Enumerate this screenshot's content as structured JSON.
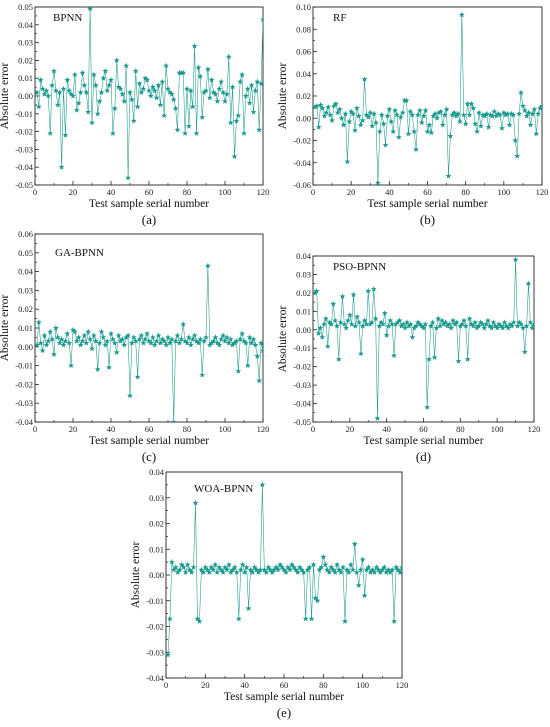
{
  "colors": {
    "series": "#1a9a8e",
    "axis": "#222222"
  },
  "chart_data": [
    {
      "id": "a",
      "type": "scatter",
      "title": "BPNN",
      "caption": "(a)",
      "xlabel": "Test sample serial number",
      "ylabel": "Absolute error",
      "xlim": [
        0,
        120
      ],
      "ylim": [
        -0.05,
        0.05
      ],
      "xticks": [
        0,
        20,
        40,
        60,
        80,
        100,
        120
      ],
      "yticks": [
        -0.05,
        -0.04,
        -0.03,
        -0.02,
        -0.01,
        0.0,
        0.01,
        0.02,
        0.03,
        0.04,
        0.05
      ],
      "x": [
        1,
        2,
        3,
        4,
        5,
        6,
        7,
        8,
        9,
        10,
        11,
        12,
        13,
        14,
        15,
        16,
        17,
        18,
        19,
        20,
        21,
        22,
        23,
        24,
        25,
        26,
        27,
        28,
        29,
        30,
        31,
        32,
        33,
        34,
        35,
        36,
        37,
        38,
        39,
        40,
        41,
        42,
        43,
        44,
        45,
        46,
        47,
        48,
        49,
        50,
        51,
        52,
        53,
        54,
        55,
        56,
        57,
        58,
        59,
        60,
        61,
        62,
        63,
        64,
        65,
        66,
        67,
        68,
        69,
        70,
        71,
        72,
        73,
        74,
        75,
        76,
        77,
        78,
        79,
        80,
        81,
        82,
        83,
        84,
        85,
        86,
        87,
        88,
        89,
        90,
        91,
        92,
        93,
        94,
        95,
        96,
        97,
        98,
        99,
        100,
        101,
        102,
        103,
        104,
        105,
        106,
        107,
        108,
        109,
        110,
        111,
        112,
        113,
        114,
        115,
        116,
        117,
        118,
        119,
        120
      ],
      "y": [
        0.002,
        -0.006,
        0.009,
        0.004,
        0.001,
        0.003,
        0.0,
        -0.021,
        0.006,
        0.014,
        0.003,
        -0.005,
        0.002,
        -0.04,
        0.004,
        -0.022,
        0.009,
        0.003,
        0.001,
        0.0,
        0.012,
        -0.008,
        -0.004,
        0.002,
        0.013,
        0.006,
        0.002,
        -0.009,
        0.049,
        -0.015,
        0.012,
        0.006,
        -0.01,
        -0.003,
        0.002,
        0.01,
        0.014,
        0.003,
        0.006,
        0.009,
        -0.021,
        -0.007,
        0.02,
        0.005,
        0.004,
        0.001,
        -0.003,
        0.017,
        -0.046,
        0.002,
        -0.002,
        -0.014,
        0.014,
        -0.006,
        0.007,
        0.002,
        0.004,
        0.01,
        0.009,
        0.003,
        0.0,
        0.005,
        0.003,
        -0.001,
        0.006,
        -0.005,
        0.008,
        -0.011,
        0.017,
        0.004,
        0.002,
        0.001,
        -0.002,
        -0.007,
        -0.019,
        0.013,
        0.013,
        0.013,
        -0.021,
        0.004,
        -0.017,
        0.003,
        -0.006,
        0.028,
        -0.021,
        0.016,
        0.011,
        -0.012,
        0.002,
        0.003,
        0.015,
        -0.001,
        0.009,
        0.002,
        0.001,
        -0.003,
        0.004,
        0.008,
        0.002,
        -0.003,
        0.001,
        0.022,
        -0.015,
        0.005,
        -0.034,
        -0.014,
        -0.011,
        0.008,
        0.012,
        -0.021,
        0.0,
        0.004,
        -0.004,
        0.006,
        -0.009,
        0.003,
        0.008,
        -0.019,
        0.007,
        0.043
      ]
    },
    {
      "id": "b",
      "type": "scatter",
      "title": "RF",
      "caption": "(b)",
      "xlabel": "Test sample serial number",
      "ylabel": "Absolute error",
      "xlim": [
        0,
        120
      ],
      "ylim": [
        -0.06,
        0.1
      ],
      "xticks": [
        0,
        20,
        40,
        60,
        80,
        100,
        120
      ],
      "yticks": [
        -0.06,
        -0.04,
        -0.02,
        0.0,
        0.02,
        0.04,
        0.06,
        0.08,
        0.1
      ],
      "x": [
        1,
        2,
        3,
        4,
        5,
        6,
        7,
        8,
        9,
        10,
        11,
        12,
        13,
        14,
        15,
        16,
        17,
        18,
        19,
        20,
        21,
        22,
        23,
        24,
        25,
        26,
        27,
        28,
        29,
        30,
        31,
        32,
        33,
        34,
        35,
        36,
        37,
        38,
        39,
        40,
        41,
        42,
        43,
        44,
        45,
        46,
        47,
        48,
        49,
        50,
        51,
        52,
        53,
        54,
        55,
        56,
        57,
        58,
        59,
        60,
        61,
        62,
        63,
        64,
        65,
        66,
        67,
        68,
        69,
        70,
        71,
        72,
        73,
        74,
        75,
        76,
        77,
        78,
        79,
        80,
        81,
        82,
        83,
        84,
        85,
        86,
        87,
        88,
        89,
        90,
        91,
        92,
        93,
        94,
        95,
        96,
        97,
        98,
        99,
        100,
        101,
        102,
        103,
        104,
        105,
        106,
        107,
        108,
        109,
        110,
        111,
        112,
        113,
        114,
        115,
        116,
        117,
        118,
        119,
        120
      ],
      "y": [
        0.01,
        0.011,
        -0.008,
        0.012,
        0.009,
        0.002,
        0.005,
        0.01,
        0.003,
        -0.002,
        0.011,
        0.013,
        0.005,
        0.008,
        0.0,
        -0.006,
        0.004,
        -0.039,
        -0.003,
        0.006,
        0.004,
        -0.011,
        0.009,
        0.002,
        -0.006,
        -0.002,
        0.035,
        0.003,
        0.001,
        0.005,
        -0.007,
        0.004,
        -0.004,
        -0.058,
        -0.012,
        0.003,
        -0.005,
        -0.024,
        0.002,
        0.008,
        -0.003,
        -0.012,
        0.007,
        0.003,
        -0.017,
        0.001,
        0.005,
        0.016,
        0.016,
        -0.014,
        0.006,
        0.003,
        -0.012,
        -0.028,
        0.003,
        0.007,
        -0.004,
        0.002,
        0.007,
        -0.012,
        -0.006,
        -0.013,
        0.002,
        0.004,
        0.0,
        0.005,
        0.006,
        -0.006,
        0.003,
        0.008,
        -0.052,
        -0.016,
        0.003,
        0.005,
        0.002,
        0.004,
        -0.003,
        0.093,
        0.003,
        -0.005,
        0.013,
        0.003,
        0.013,
        0.009,
        -0.005,
        -0.012,
        0.005,
        -0.007,
        0.003,
        0.002,
        0.004,
        -0.008,
        0.003,
        0.002,
        0.006,
        0.002,
        0.004,
        0.003,
        -0.009,
        0.005,
        0.003,
        0.004,
        -0.006,
        0.004,
        0.003,
        -0.02,
        -0.034,
        0.004,
        0.023,
        0.011,
        0.007,
        0.002,
        0.005,
        -0.006,
        0.004,
        0.008,
        -0.014,
        0.004,
        0.009,
        0.011
      ]
    },
    {
      "id": "c",
      "type": "scatter",
      "title": "GA-BPNN",
      "caption": "(c)",
      "xlabel": "Test sample serial number",
      "ylabel": "Absolute error",
      "xlim": [
        0,
        120
      ],
      "ylim": [
        -0.04,
        0.06
      ],
      "xticks": [
        0,
        20,
        40,
        60,
        80,
        100,
        120
      ],
      "yticks": [
        -0.04,
        -0.03,
        -0.02,
        -0.01,
        0.0,
        0.01,
        0.02,
        0.03,
        0.04,
        0.05,
        0.06
      ],
      "x": [
        1,
        2,
        3,
        4,
        5,
        6,
        7,
        8,
        9,
        10,
        11,
        12,
        13,
        14,
        15,
        16,
        17,
        18,
        19,
        20,
        21,
        22,
        23,
        24,
        25,
        26,
        27,
        28,
        29,
        30,
        31,
        32,
        33,
        34,
        35,
        36,
        37,
        38,
        39,
        40,
        41,
        42,
        43,
        44,
        45,
        46,
        47,
        48,
        49,
        50,
        51,
        52,
        53,
        54,
        55,
        56,
        57,
        58,
        59,
        60,
        61,
        62,
        63,
        64,
        65,
        66,
        67,
        68,
        69,
        70,
        71,
        72,
        73,
        74,
        75,
        76,
        77,
        78,
        79,
        80,
        81,
        82,
        83,
        84,
        85,
        86,
        87,
        88,
        89,
        90,
        91,
        92,
        93,
        94,
        95,
        96,
        97,
        98,
        99,
        100,
        101,
        102,
        103,
        104,
        105,
        106,
        107,
        108,
        109,
        110,
        111,
        112,
        113,
        114,
        115,
        116,
        117,
        118,
        119,
        120
      ],
      "y": [
        0.001,
        0.013,
        0.002,
        -0.002,
        0.006,
        0.001,
        0.003,
        0.008,
        0.004,
        -0.004,
        0.01,
        0.005,
        0.002,
        0.004,
        0.001,
        0.003,
        0.007,
        0.002,
        -0.01,
        0.009,
        0.008,
        0.003,
        0.005,
        0.001,
        0.003,
        0.006,
        0.002,
        0.008,
        0.004,
        -0.001,
        0.006,
        0.003,
        -0.012,
        0.002,
        0.008,
        0.005,
        0.001,
        0.003,
        -0.011,
        0.007,
        0.004,
        0.002,
        -0.003,
        0.006,
        0.003,
        0.004,
        0.001,
        0.005,
        0.006,
        -0.026,
        0.002,
        0.005,
        0.003,
        -0.016,
        0.004,
        0.006,
        0.002,
        0.004,
        0.007,
        0.003,
        0.002,
        0.005,
        0.001,
        0.003,
        0.006,
        0.002,
        0.004,
        0.003,
        0.001,
        0.005,
        0.002,
        0.004,
        -0.04,
        0.003,
        0.006,
        0.002,
        0.004,
        0.012,
        0.003,
        0.002,
        0.005,
        0.001,
        0.004,
        0.006,
        0.003,
        0.002,
        0.004,
        -0.015,
        0.003,
        0.005,
        0.043,
        0.001,
        0.002,
        0.003,
        0.005,
        0.002,
        0.001,
        0.004,
        0.006,
        0.003,
        0.005,
        0.002,
        0.004,
        0.001,
        0.002,
        0.003,
        -0.013,
        0.004,
        0.007,
        0.003,
        0.002,
        -0.01,
        0.005,
        0.002,
        0.004,
        0.001,
        -0.005,
        -0.018,
        0.002,
        -0.002
      ]
    },
    {
      "id": "d",
      "type": "scatter",
      "title": "PSO-BPNN",
      "caption": "(d)",
      "xlabel": "Test sample serial number",
      "ylabel": "Absolute error",
      "xlim": [
        0,
        120
      ],
      "ylim": [
        -0.05,
        0.04
      ],
      "xticks": [
        0,
        20,
        40,
        60,
        80,
        100,
        120
      ],
      "yticks": [
        -0.05,
        -0.04,
        -0.03,
        -0.02,
        -0.01,
        0.0,
        0.01,
        0.02,
        0.03,
        0.04
      ],
      "x": [
        1,
        2,
        3,
        4,
        5,
        6,
        7,
        8,
        9,
        10,
        11,
        12,
        13,
        14,
        15,
        16,
        17,
        18,
        19,
        20,
        21,
        22,
        23,
        24,
        25,
        26,
        27,
        28,
        29,
        30,
        31,
        32,
        33,
        34,
        35,
        36,
        37,
        38,
        39,
        40,
        41,
        42,
        43,
        44,
        45,
        46,
        47,
        48,
        49,
        50,
        51,
        52,
        53,
        54,
        55,
        56,
        57,
        58,
        59,
        60,
        61,
        62,
        63,
        64,
        65,
        66,
        67,
        68,
        69,
        70,
        71,
        72,
        73,
        74,
        75,
        76,
        77,
        78,
        79,
        80,
        81,
        82,
        83,
        84,
        85,
        86,
        87,
        88,
        89,
        90,
        91,
        92,
        93,
        94,
        95,
        96,
        97,
        98,
        99,
        100,
        101,
        102,
        103,
        104,
        105,
        106,
        107,
        108,
        109,
        110,
        111,
        112,
        113,
        114,
        115,
        116,
        117,
        118,
        119,
        120
      ],
      "y": [
        0.02,
        0.021,
        -0.002,
        0.001,
        -0.004,
        0.003,
        0.006,
        -0.009,
        0.004,
        0.003,
        0.014,
        0.005,
        0.002,
        -0.016,
        0.004,
        0.018,
        0.003,
        0.001,
        0.005,
        0.008,
        0.003,
        0.019,
        0.002,
        0.007,
        0.004,
        -0.013,
        0.002,
        0.005,
        0.003,
        0.021,
        0.003,
        0.004,
        0.022,
        0.006,
        -0.048,
        0.002,
        0.004,
        0.003,
        0.009,
        -0.003,
        0.002,
        0.005,
        0.003,
        -0.014,
        0.003,
        0.004,
        0.005,
        0.002,
        0.003,
        0.001,
        0.004,
        0.002,
        0.003,
        -0.004,
        0.001,
        0.002,
        0.004,
        0.003,
        0.002,
        0.001,
        0.003,
        -0.042,
        -0.016,
        0.002,
        0.004,
        -0.015,
        0.001,
        0.006,
        0.002,
        0.005,
        0.003,
        0.004,
        0.002,
        0.003,
        0.001,
        0.005,
        0.003,
        0.004,
        -0.017,
        0.002,
        0.003,
        0.005,
        0.002,
        -0.016,
        0.006,
        0.003,
        0.002,
        0.004,
        0.001,
        0.002,
        0.004,
        0.003,
        0.001,
        0.003,
        0.005,
        0.002,
        0.001,
        0.004,
        0.002,
        0.001,
        0.003,
        0.002,
        0.001,
        0.004,
        0.002,
        0.001,
        0.003,
        0.002,
        0.004,
        0.038,
        0.002,
        0.004,
        0.003,
        0.001,
        -0.012,
        0.002,
        0.025,
        0.004,
        0.001,
        0.003
      ]
    },
    {
      "id": "e",
      "type": "scatter",
      "title": "WOA-BPNN",
      "caption": "(e)",
      "xlabel": "Test sample serial number",
      "ylabel": "Absolute error",
      "xlim": [
        0,
        120
      ],
      "ylim": [
        -0.04,
        0.04
      ],
      "xticks": [
        0,
        20,
        40,
        60,
        80,
        100,
        120
      ],
      "yticks": [
        -0.04,
        -0.03,
        -0.02,
        -0.01,
        0.0,
        0.01,
        0.02,
        0.03,
        0.04
      ],
      "x": [
        1,
        2,
        3,
        4,
        5,
        6,
        7,
        8,
        9,
        10,
        11,
        12,
        13,
        14,
        15,
        16,
        17,
        18,
        19,
        20,
        21,
        22,
        23,
        24,
        25,
        26,
        27,
        28,
        29,
        30,
        31,
        32,
        33,
        34,
        35,
        36,
        37,
        38,
        39,
        40,
        41,
        42,
        43,
        44,
        45,
        46,
        47,
        48,
        49,
        50,
        51,
        52,
        53,
        54,
        55,
        56,
        57,
        58,
        59,
        60,
        61,
        62,
        63,
        64,
        65,
        66,
        67,
        68,
        69,
        70,
        71,
        72,
        73,
        74,
        75,
        76,
        77,
        78,
        79,
        80,
        81,
        82,
        83,
        84,
        85,
        86,
        87,
        88,
        89,
        90,
        91,
        92,
        93,
        94,
        95,
        96,
        97,
        98,
        99,
        100,
        101,
        102,
        103,
        104,
        105,
        106,
        107,
        108,
        109,
        110,
        111,
        112,
        113,
        114,
        115,
        116,
        117,
        118,
        119,
        120
      ],
      "y": [
        -0.031,
        -0.017,
        0.005,
        0.002,
        0.003,
        0.001,
        0.002,
        0.004,
        0.003,
        0.001,
        0.004,
        0.002,
        0.001,
        0.003,
        0.028,
        -0.017,
        -0.018,
        0.002,
        0.001,
        0.003,
        0.002,
        0.001,
        0.003,
        0.002,
        0.004,
        0.001,
        0.003,
        0.002,
        0.001,
        0.003,
        0.002,
        0.004,
        0.001,
        0.002,
        0.003,
        0.001,
        -0.017,
        0.002,
        0.004,
        0.001,
        0.003,
        -0.013,
        0.002,
        0.001,
        0.003,
        0.002,
        0.001,
        0.002,
        0.035,
        0.002,
        0.001,
        0.003,
        0.002,
        0.001,
        0.002,
        0.003,
        0.002,
        0.004,
        0.003,
        0.002,
        0.001,
        0.003,
        0.002,
        0.004,
        0.003,
        0.002,
        0.001,
        0.003,
        0.002,
        0.001,
        -0.017,
        0.002,
        0.003,
        -0.017,
        0.004,
        -0.009,
        -0.01,
        0.002,
        0.003,
        0.007,
        0.004,
        0.002,
        0.001,
        0.003,
        0.002,
        0.001,
        0.004,
        0.002,
        0.001,
        0.003,
        -0.018,
        0.002,
        0.001,
        0.004,
        0.002,
        0.012,
        0.001,
        -0.004,
        0.002,
        0.006,
        -0.008,
        0.002,
        0.003,
        0.001,
        0.002,
        0.001,
        0.003,
        0.002,
        0.001,
        0.002,
        0.003,
        0.001,
        0.002,
        0.001,
        0.002,
        -0.018,
        0.003,
        0.002,
        0.001,
        0.003
      ]
    }
  ]
}
